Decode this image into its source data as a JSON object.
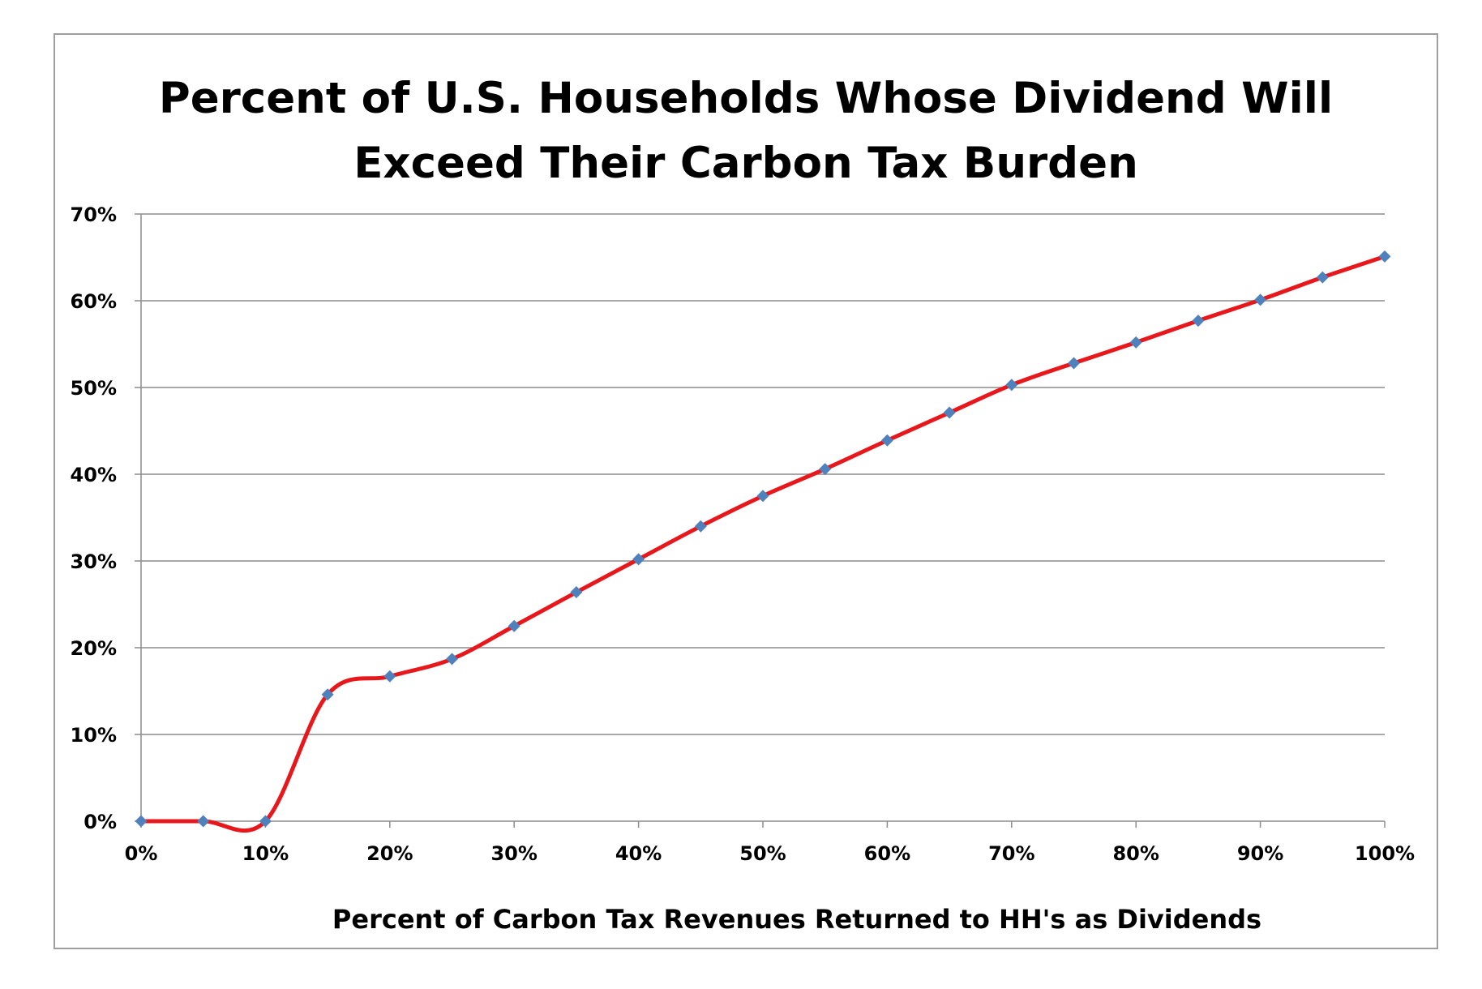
{
  "chart_data": {
    "type": "line",
    "title": [
      "Percent of U.S. Households Whose Dividend Will",
      "Exceed Their Carbon Tax Burden"
    ],
    "xlabel": "Percent of Carbon Tax Revenues Returned to HH's as Dividends",
    "ylabel": "",
    "x": [
      0,
      5,
      10,
      15,
      20,
      25,
      30,
      35,
      40,
      45,
      50,
      55,
      60,
      65,
      70,
      75,
      80,
      85,
      90,
      95,
      100
    ],
    "series": [
      {
        "values": [
          0,
          0,
          0,
          14.6,
          16.7,
          18.7,
          22.5,
          26.4,
          30.2,
          34.0,
          37.5,
          40.6,
          43.9,
          47.1,
          50.3,
          52.8,
          55.2,
          57.7,
          60.1,
          62.7,
          65.1
        ],
        "line_color": "#e8171b",
        "marker_color": "#4f81bd",
        "marker": "diamond",
        "smooth": true
      }
    ],
    "xlim": [
      0,
      100
    ],
    "ylim": [
      0,
      70
    ],
    "xticks": [
      0,
      10,
      20,
      30,
      40,
      50,
      60,
      70,
      80,
      90,
      100
    ],
    "yticks": [
      0,
      10,
      20,
      30,
      40,
      50,
      60,
      70
    ],
    "xtick_labels": [
      "0%",
      "10%",
      "20%",
      "30%",
      "40%",
      "50%",
      "60%",
      "70%",
      "80%",
      "90%",
      "100%"
    ],
    "ytick_labels": [
      "0%",
      "10%",
      "20%",
      "30%",
      "40%",
      "50%",
      "60%",
      "70%"
    ],
    "grid": "horizontal",
    "legend": "none"
  }
}
